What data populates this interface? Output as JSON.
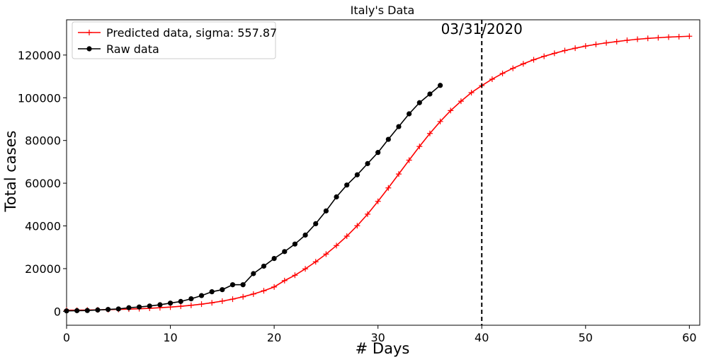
{
  "chart_data": {
    "type": "line",
    "title": "Italy's Data",
    "xlabel": "# Days",
    "ylabel": "Total cases",
    "xlim": [
      0,
      61
    ],
    "ylim": [
      -6500,
      136500
    ],
    "xticks": [
      0,
      10,
      20,
      30,
      40,
      50,
      60
    ],
    "yticks": [
      0,
      20000,
      40000,
      60000,
      80000,
      100000,
      120000
    ],
    "grid": false,
    "legend_position": "top-left",
    "vline": {
      "x": 40,
      "label": "03/31/2020"
    },
    "series": [
      {
        "name": " Predicted data, sigma: 557.87",
        "color": "#ff0000",
        "marker": "plus",
        "x": [
          0,
          1,
          2,
          3,
          4,
          5,
          6,
          7,
          8,
          9,
          10,
          11,
          12,
          13,
          14,
          15,
          16,
          17,
          18,
          19,
          20,
          21,
          22,
          23,
          24,
          25,
          26,
          27,
          28,
          29,
          30,
          31,
          32,
          33,
          34,
          35,
          36,
          37,
          38,
          39,
          40,
          41,
          42,
          43,
          44,
          45,
          46,
          47,
          48,
          49,
          50,
          51,
          52,
          53,
          54,
          55,
          56,
          57,
          58,
          59,
          60
        ],
        "values": [
          500,
          550,
          620,
          700,
          800,
          920,
          1060,
          1230,
          1440,
          1700,
          2000,
          2380,
          2830,
          3370,
          4020,
          4790,
          5720,
          6820,
          8120,
          9640,
          11420,
          14400,
          16900,
          19900,
          23200,
          26800,
          30800,
          35200,
          40100,
          45500,
          51500,
          57800,
          64300,
          70800,
          77200,
          83300,
          88900,
          94000,
          98400,
          102400,
          105700,
          108700,
          111400,
          113800,
          115900,
          117800,
          119400,
          120800,
          122100,
          123200,
          124200,
          125000,
          125700,
          126300,
          126900,
          127400,
          127800,
          128100,
          128400,
          128600,
          128800
        ]
      },
      {
        "name": "Raw data",
        "color": "#000000",
        "marker": "circle",
        "x": [
          0,
          1,
          2,
          3,
          4,
          5,
          6,
          7,
          8,
          9,
          10,
          11,
          12,
          13,
          14,
          15,
          16,
          17,
          18,
          19,
          20,
          21,
          22,
          23,
          24,
          25,
          26,
          27,
          28,
          29,
          30,
          31,
          32,
          33,
          34,
          35,
          36,
          37,
          38,
          39,
          40
        ],
        "values": [
          229,
          322,
          400,
          650,
          888,
          1128,
          1694,
          2036,
          2502,
          3089,
          3858,
          4636,
          5883,
          7375,
          9172,
          10149,
          12462,
          12462,
          17660,
          21157,
          24747,
          27980,
          31506,
          35713,
          41035,
          47021,
          53578,
          59138,
          63927,
          69176,
          74386,
          80539,
          86498,
          92472,
          97689,
          101739,
          105792,
          null,
          null,
          null,
          null
        ]
      }
    ]
  }
}
